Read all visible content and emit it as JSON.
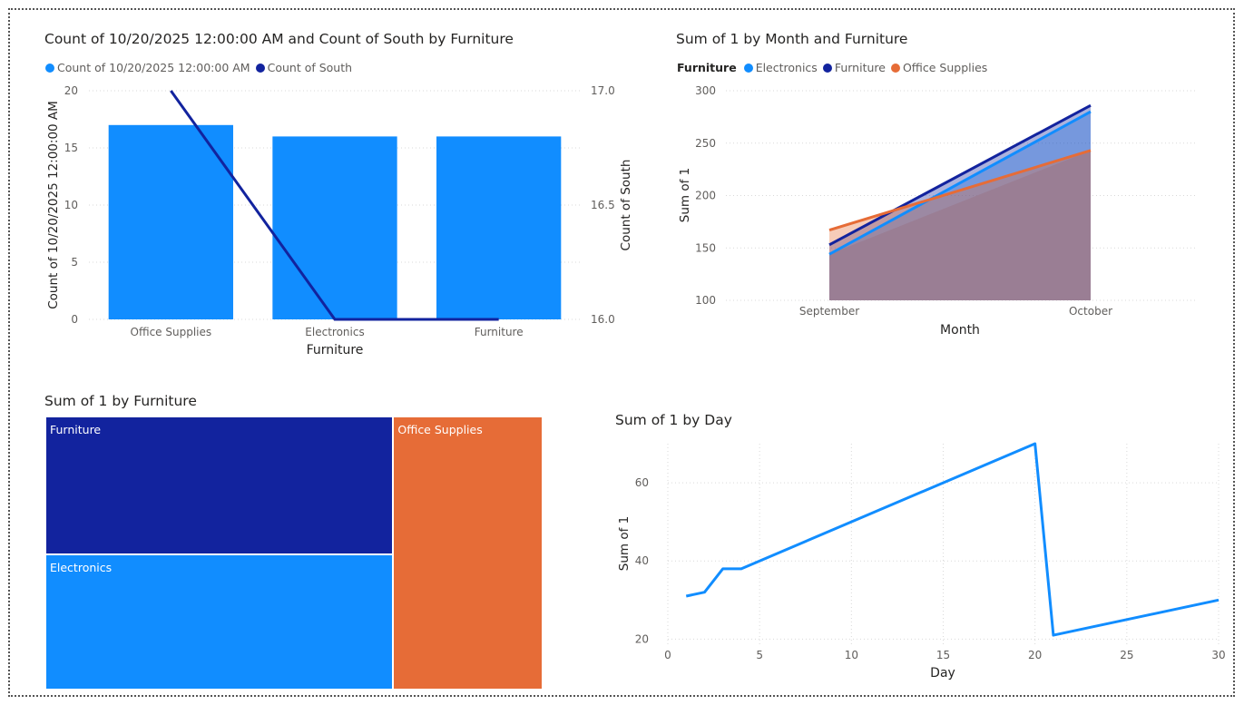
{
  "colors": {
    "electronics": "#118DFF",
    "furniture": "#12239E",
    "office_supplies": "#E66C37",
    "area_mix": "#9A7E94",
    "grid": "#d9d9d9",
    "text": "#252423",
    "subtext": "#605e5c"
  },
  "chart_data": [
    {
      "id": "combo",
      "type": "bar",
      "title": "Count of 10/20/2025 12:00:00 AM and Count of South by Furniture",
      "legend": [
        "Count of 10/20/2025 12:00:00 AM",
        "Count of South"
      ],
      "xlabel": "Furniture",
      "ylabel": "Count of 10/20/2025 12:00:00 AM",
      "y2label": "Count of South",
      "categories": [
        "Office Supplies",
        "Electronics",
        "Furniture"
      ],
      "series": [
        {
          "name": "Count of 10/20/2025 12:00:00 AM",
          "type": "bar",
          "axis": "left",
          "values": [
            17,
            16,
            16
          ]
        },
        {
          "name": "Count of South",
          "type": "line",
          "axis": "right",
          "values": [
            17,
            16,
            16
          ]
        }
      ],
      "ylim": [
        0,
        20
      ],
      "yticks": [
        "0",
        "5",
        "10",
        "15",
        "20"
      ],
      "y2lim": [
        16,
        17
      ],
      "y2ticks": [
        "16.0",
        "16.5",
        "17.0"
      ],
      "grid": true
    },
    {
      "id": "area",
      "type": "area",
      "title": "Sum of 1 by Month and Furniture",
      "legend_title": "Furniture",
      "legend": [
        "Electronics",
        "Furniture",
        "Office Supplies"
      ],
      "xlabel": "Month",
      "ylabel": "Sum of 1",
      "categories": [
        "September",
        "October"
      ],
      "series": [
        {
          "name": "Electronics",
          "values": [
            144,
            280
          ]
        },
        {
          "name": "Furniture",
          "values": [
            153,
            286
          ]
        },
        {
          "name": "Office Supplies",
          "values": [
            167,
            243
          ]
        }
      ],
      "ylim": [
        100,
        300
      ],
      "yticks": [
        "100",
        "150",
        "200",
        "250",
        "300"
      ],
      "grid": true
    },
    {
      "id": "treemap",
      "type": "treemap",
      "title": "Sum of 1 by Furniture",
      "categories": [
        "Furniture",
        "Electronics",
        "Office Supplies"
      ],
      "values": [
        286,
        280,
        243
      ]
    },
    {
      "id": "line",
      "type": "line",
      "title": "Sum of 1 by Day",
      "xlabel": "Day",
      "ylabel": "Sum of 1",
      "x": [
        1,
        2,
        3,
        4,
        20,
        21,
        30
      ],
      "values": [
        31,
        32,
        38,
        38,
        70,
        21,
        30
      ],
      "xlim": [
        0,
        30
      ],
      "xticks": [
        "0",
        "5",
        "10",
        "15",
        "20",
        "25",
        "30"
      ],
      "ylim": [
        18,
        70
      ],
      "yticks": [
        "20",
        "40",
        "60"
      ],
      "grid": true
    }
  ]
}
